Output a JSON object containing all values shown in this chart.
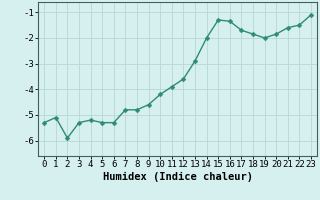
{
  "x": [
    0,
    1,
    2,
    3,
    4,
    5,
    6,
    7,
    8,
    9,
    10,
    11,
    12,
    13,
    14,
    15,
    16,
    17,
    18,
    19,
    20,
    21,
    22,
    23
  ],
  "y": [
    -5.3,
    -5.1,
    -5.9,
    -5.3,
    -5.2,
    -5.3,
    -5.3,
    -4.8,
    -4.8,
    -4.6,
    -4.2,
    -3.9,
    -3.6,
    -2.9,
    -2.0,
    -1.3,
    -1.35,
    -1.7,
    -1.85,
    -2.0,
    -1.85,
    -1.6,
    -1.5,
    -1.1
  ],
  "line_color": "#2e8b7a",
  "marker_color": "#2e8b7a",
  "bg_color": "#d6f0ef",
  "grid_color": "#b8d8d4",
  "xlabel": "Humidex (Indice chaleur)",
  "xlim": [
    -0.5,
    23.5
  ],
  "ylim": [
    -6.6,
    -0.6
  ],
  "yticks": [
    -6,
    -5,
    -4,
    -3,
    -2,
    -1
  ],
  "xticks": [
    0,
    1,
    2,
    3,
    4,
    5,
    6,
    7,
    8,
    9,
    10,
    11,
    12,
    13,
    14,
    15,
    16,
    17,
    18,
    19,
    20,
    21,
    22,
    23
  ],
  "xlabel_fontsize": 7.5,
  "tick_fontsize": 6.5,
  "line_width": 1.0,
  "marker_size": 2.5
}
